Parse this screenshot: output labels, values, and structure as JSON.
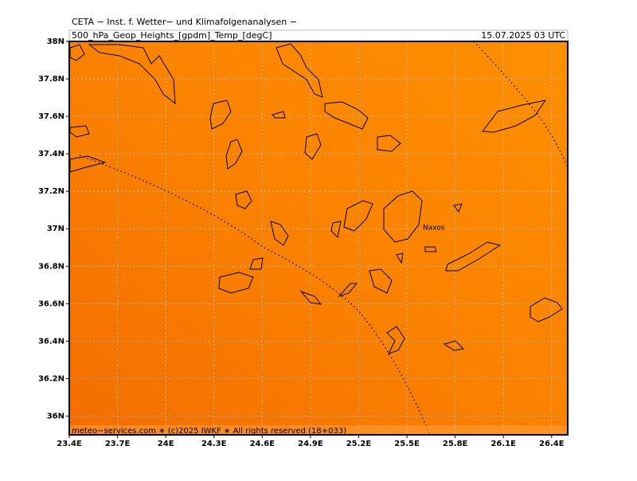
{
  "map": {
    "title": "CETA − Inst. f. Wetter− und Klimafolgenanalysen −",
    "subtitle": "500_hPa_Geop_Heights_[gpdm]_Temp_[degC]",
    "valid": "15.07.2025 03 UTC",
    "footer": "meteo−services.com ∗ (c)2025 IWKF ∗ All rights reserved (18+033)",
    "places": [
      {
        "label": "Naxos"
      }
    ],
    "xlim": [
      23.4,
      26.5
    ],
    "ylim": [
      35.9,
      38.0
    ],
    "xticks": [
      {
        "value": 23.4,
        "label": "23.4E"
      },
      {
        "value": 23.7,
        "label": "23.7E"
      },
      {
        "value": 24,
        "label": "24E"
      },
      {
        "value": 24.3,
        "label": "24.3E"
      },
      {
        "value": 24.6,
        "label": "24.6E"
      },
      {
        "value": 24.9,
        "label": "24.9E"
      },
      {
        "value": 25.2,
        "label": "25.2E"
      },
      {
        "value": 25.5,
        "label": "25.5E"
      },
      {
        "value": 25.8,
        "label": "25.8E"
      },
      {
        "value": 26.1,
        "label": "26.1E"
      },
      {
        "value": 26.4,
        "label": "26.4E"
      }
    ],
    "yticks": [
      {
        "value": 36,
        "label": "36N"
      },
      {
        "value": 36.2,
        "label": "36.2N"
      },
      {
        "value": 36.4,
        "label": "36.4N"
      },
      {
        "value": 36.6,
        "label": "36.6N"
      },
      {
        "value": 36.8,
        "label": "36.8N"
      },
      {
        "value": 37,
        "label": "37N"
      },
      {
        "value": 37.2,
        "label": "37.2N"
      },
      {
        "value": 37.4,
        "label": "37.4N"
      },
      {
        "value": 37.6,
        "label": "37.6N"
      },
      {
        "value": 37.8,
        "label": "37.8N"
      },
      {
        "value": 38,
        "label": "38N"
      }
    ]
  }
}
